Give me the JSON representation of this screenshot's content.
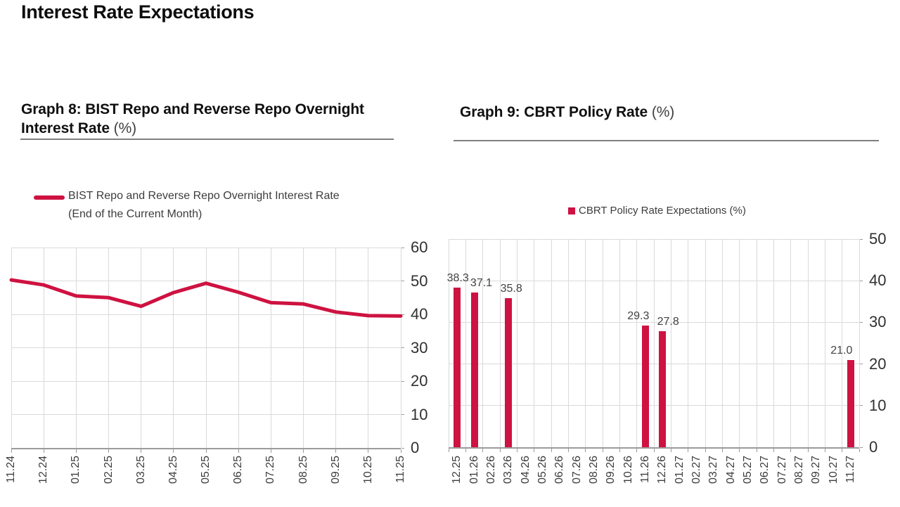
{
  "page": {
    "title": "Interest Rate Expectations"
  },
  "graph8": {
    "title_line1": "Graph 8: BIST Repo and Reverse Repo Overnight",
    "title_line2": "Interest Rate",
    "title_suffix": "(%)",
    "legend_line1": "BIST Repo and Reverse Repo Overnight Interest Rate",
    "legend_line2": "(End of the Current Month)"
  },
  "graph9": {
    "title": "Graph 9: CBRT Policy Rate",
    "title_suffix": "(%)",
    "legend": "CBRT Policy Rate Expectations (%)"
  },
  "chart_data": [
    {
      "type": "line",
      "title": "Graph 8: BIST Repo and Reverse Repo Overnight Interest Rate (%)",
      "legend": [
        "BIST Repo and Reverse Repo Overnight Interest Rate (End of the Current Month)"
      ],
      "legend_position": "top",
      "categories": [
        "11.24",
        "12.24",
        "01.25",
        "02.25",
        "03.25",
        "04.25",
        "05.25",
        "06.25",
        "07.25",
        "08.25",
        "09.25",
        "10.25",
        "11.25"
      ],
      "series": [
        {
          "name": "BIST Repo and Reverse Repo Overnight Interest Rate (End of the Current Month)",
          "values": [
            50.3,
            48.8,
            45.5,
            45.0,
            42.4,
            46.5,
            49.3,
            46.6,
            43.5,
            43.1,
            40.7,
            39.6,
            39.5
          ]
        }
      ],
      "xlabel": "",
      "ylabel": "",
      "ylim": [
        0,
        60
      ],
      "ytick_step": 10,
      "yticks": [
        0,
        10,
        20,
        30,
        40,
        50,
        60
      ],
      "yaxis_side": "right",
      "grid": true,
      "color": "#ce1241"
    },
    {
      "type": "bar",
      "title": "Graph 9: CBRT Policy Rate (%)",
      "legend": [
        "CBRT Policy Rate Expectations (%)"
      ],
      "legend_position": "top",
      "categories": [
        "12.25",
        "01.26",
        "02.26",
        "03.26",
        "04.26",
        "05.26",
        "06.26",
        "07.26",
        "08.26",
        "09.26",
        "10.26",
        "11.26",
        "12.26",
        "01.27",
        "02.27",
        "03.27",
        "04.27",
        "05.27",
        "06.27",
        "07.27",
        "08.27",
        "09.27",
        "10.27",
        "11.27"
      ],
      "values": [
        38.3,
        37.1,
        null,
        35.8,
        null,
        null,
        null,
        null,
        null,
        null,
        null,
        29.3,
        27.8,
        null,
        null,
        null,
        null,
        null,
        null,
        null,
        null,
        null,
        null,
        21.0
      ],
      "data_labels": [
        "38.3",
        "37.1",
        null,
        "35.8",
        null,
        null,
        null,
        null,
        null,
        null,
        null,
        "29.3",
        "27.8",
        null,
        null,
        null,
        null,
        null,
        null,
        null,
        null,
        null,
        null,
        "21.0"
      ],
      "label_dx": [
        1,
        10,
        null,
        4,
        null,
        null,
        null,
        null,
        null,
        null,
        null,
        -10,
        8,
        null,
        null,
        null,
        null,
        null,
        null,
        null,
        null,
        null,
        null,
        -13
      ],
      "xlabel": "",
      "ylabel": "",
      "ylim": [
        0,
        50
      ],
      "ytick_step": 10,
      "yticks": [
        0,
        10,
        20,
        30,
        40,
        50
      ],
      "yaxis_side": "right",
      "grid": true,
      "color": "#ce1241"
    }
  ]
}
